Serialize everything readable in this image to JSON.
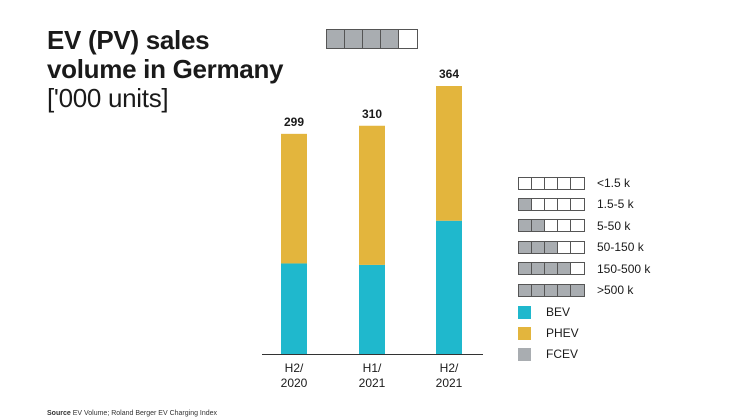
{
  "title": {
    "bold": "EV (PV) sales volume in Germany",
    "unit": "['000 units]"
  },
  "indicator": {
    "filled": 4,
    "total": 5
  },
  "colors": {
    "BEV": "#1fb8cd",
    "PHEV": "#e3b53d",
    "FCEV": "#a9adb1",
    "class_fill": "#a9adb1",
    "axis": "#333333"
  },
  "chart_data": {
    "type": "bar",
    "stacked": true,
    "categories": [
      "H2/\n2020",
      "H1/\n2021",
      "H2/\n2021"
    ],
    "series": [
      {
        "name": "BEV",
        "values": [
          123,
          121,
          181
        ]
      },
      {
        "name": "PHEV",
        "values": [
          176,
          189,
          183
        ]
      },
      {
        "name": "FCEV",
        "values": [
          0,
          0,
          0
        ]
      }
    ],
    "totals": [
      299,
      310,
      364
    ],
    "title": "EV (PV) sales volume in Germany",
    "ylabel": "['000 units]",
    "ylim": [
      0,
      364
    ],
    "grid": false,
    "legend": "right"
  },
  "class_legend": [
    {
      "label": "<1.5 k",
      "filled": 0
    },
    {
      "label": "1.5-5 k",
      "filled": 1
    },
    {
      "label": "5-50 k",
      "filled": 2
    },
    {
      "label": "50-150 k",
      "filled": 3
    },
    {
      "label": "150-500 k",
      "filled": 4
    },
    {
      "label": ">500 k",
      "filled": 5
    }
  ],
  "series_legend": [
    "BEV",
    "PHEV",
    "FCEV"
  ],
  "source": {
    "label": "Source",
    "text": "EV Volume; Roland Berger EV Charging Index"
  }
}
